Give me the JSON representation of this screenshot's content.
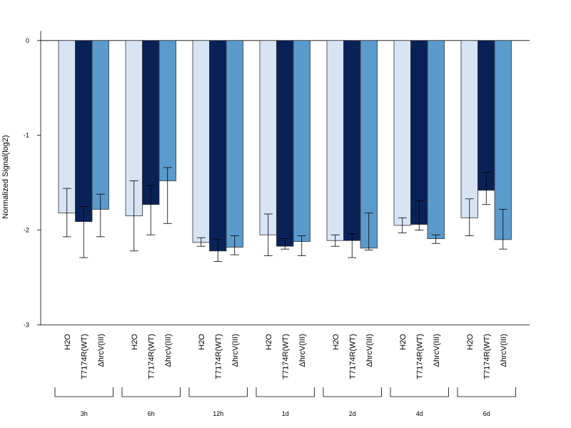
{
  "chart_data": {
    "type": "bar",
    "ylabel": "Normalized Signal(log2)",
    "ylim": [
      -3,
      0.1
    ],
    "yticks": [
      0,
      -1,
      -2,
      -3
    ],
    "baseline": 0,
    "grid": false,
    "groups": [
      "3h",
      "6h",
      "12h",
      "1d",
      "2d",
      "4d",
      "6d"
    ],
    "series": [
      {
        "name": "H2O",
        "color": "#d6e4f4",
        "values": [
          -1.82,
          -1.85,
          -2.13,
          -2.05,
          -2.11,
          -1.95,
          -1.87
        ],
        "err_low": [
          -2.07,
          -2.22,
          -2.17,
          -2.27,
          -2.17,
          -2.03,
          -2.06
        ],
        "err_high": [
          -1.56,
          -1.48,
          -2.08,
          -1.83,
          -2.05,
          -1.87,
          -1.67
        ]
      },
      {
        "name": "T7174R(WT)",
        "color": "#0a2158",
        "values": [
          -1.91,
          -1.73,
          -2.22,
          -2.17,
          -2.11,
          -1.94,
          -1.58
        ],
        "err_low": [
          -2.29,
          -2.05,
          -2.33,
          -2.2,
          -2.29,
          -2.0,
          -1.73
        ],
        "err_high": [
          -1.75,
          -1.53,
          -2.1,
          -2.09,
          -2.04,
          -1.69,
          -1.39
        ]
      },
      {
        "name": "ΔhrcV(III)",
        "color": "#5b9bcc",
        "values": [
          -1.78,
          -1.48,
          -2.18,
          -2.12,
          -2.19,
          -2.09,
          -2.1
        ],
        "err_low": [
          -2.07,
          -1.93,
          -2.26,
          -2.27,
          -2.21,
          -2.14,
          -2.2
        ],
        "err_high": [
          -1.62,
          -1.34,
          -2.06,
          -2.06,
          -1.82,
          -2.05,
          -1.78
        ]
      }
    ]
  }
}
